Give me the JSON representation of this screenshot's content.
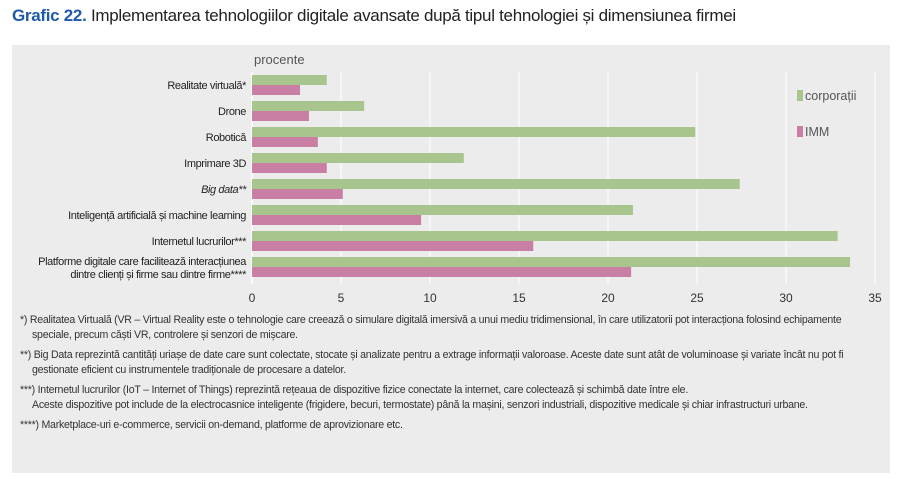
{
  "title": {
    "number": "Grafic 22.",
    "text": "Implementarea tehnologiilor digitale avansate după tipul tehnologiei și dimensiunea firmei"
  },
  "chart_data": {
    "type": "bar",
    "orientation": "horizontal",
    "unit_label": "procente",
    "categories": [
      "Realitate virtuală*",
      "Drone",
      "Robotică",
      "Imprimare 3D",
      "Big data**",
      "Inteligență artificială și machine learning",
      "Internetul lucrurilor***",
      "Platforme digitale care facilitează interacțiunea dintre clienți și firme sau dintre firme****"
    ],
    "series": [
      {
        "name": "corporații",
        "color": "#a8c58e",
        "values": [
          4.2,
          6.3,
          24.9,
          11.9,
          27.4,
          21.4,
          32.9,
          33.6
        ]
      },
      {
        "name": "IMM",
        "color": "#c97fa3",
        "values": [
          2.7,
          3.2,
          3.7,
          4.2,
          5.1,
          9.5,
          15.8,
          21.3
        ]
      }
    ],
    "xlim": [
      0,
      35
    ],
    "xticks": [
      0,
      5,
      10,
      15,
      20,
      25,
      30,
      35
    ],
    "grid": true,
    "legend": "right"
  },
  "notes": [
    {
      "mark": "*)",
      "text": "Realitatea Virtuală (VR – Virtual Reality este o tehnologie care creează o simulare digitală imersivă a unui mediu tridimensional, în care utilizatorii pot interacționa folosind echipamente speciale, precum căști VR, controlere și senzori de mișcare."
    },
    {
      "mark": "**)",
      "text": "Big Data reprezintă cantități uriașe de date care sunt colectate, stocate și analizate pentru a extrage informații valoroase. Aceste date sunt atât de voluminoase și variate încât nu pot fi gestionate eficient cu instrumentele tradiționale de procesare a datelor."
    },
    {
      "mark": "***)",
      "text": "Internetul lucrurilor (IoT – Internet of Things) reprezintă rețeaua de dispozitive fizice conectate la internet, care colectează și schimbă date între ele.",
      "text2": "Aceste dispozitive pot include de la electrocasnice inteligente (frigidere, becuri, termostate) până la mașini, senzori industriali, dispozitive medicale și chiar infrastructuri urbane."
    },
    {
      "mark": "****)",
      "text": "Marketplace-uri e-commerce, servicii on-demand, platforme de aprovizionare etc."
    }
  ]
}
